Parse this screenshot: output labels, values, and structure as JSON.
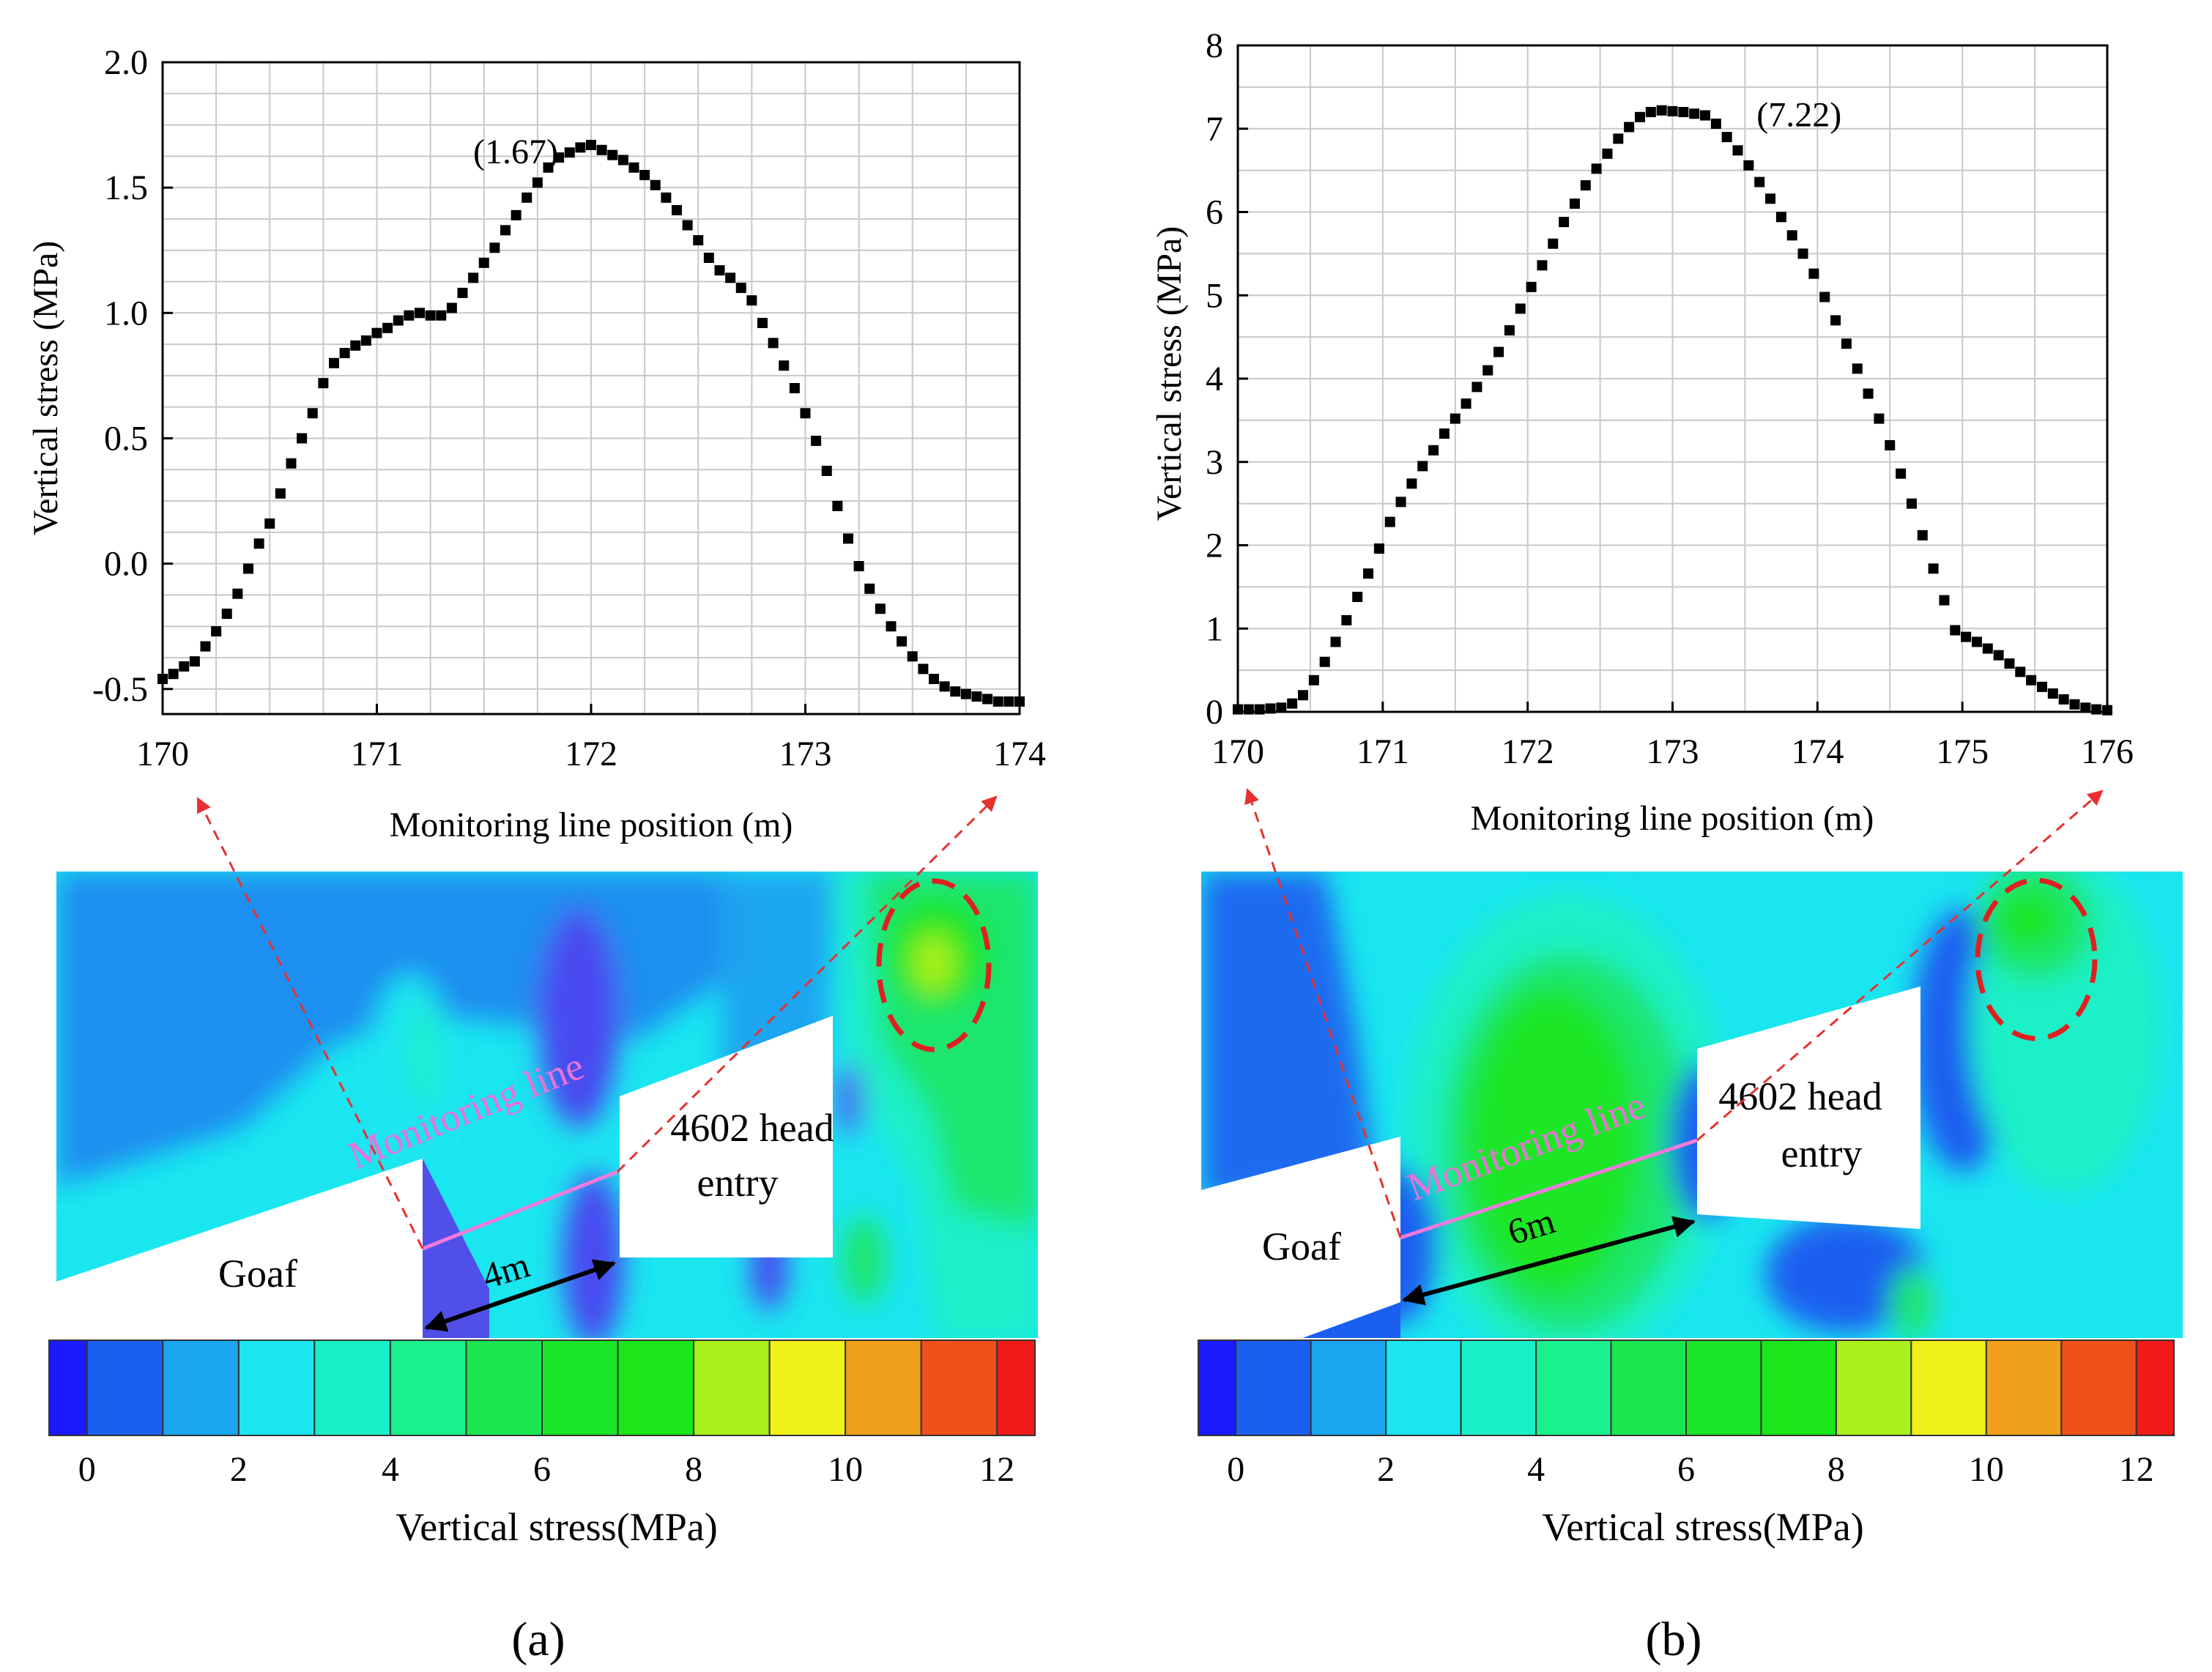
{
  "chart_data": [
    {
      "panel_label": "(a)",
      "type": "scatter",
      "xlabel": "Monitoring line position (m)",
      "ylabel": "Vertical stress (MPa)",
      "xlim": [
        170,
        174
      ],
      "ylim": [
        -0.6,
        2.0
      ],
      "xticks": [
        "170",
        "171",
        "172",
        "173",
        "174"
      ],
      "yticks": [
        "-0.5",
        "0.0",
        "0.5",
        "1.0",
        "1.5",
        "2.0"
      ],
      "grid": true,
      "marker": "square",
      "marker_color": "#000000",
      "peak": {
        "x": 172.0,
        "y": 1.67,
        "label": "(1.67)"
      },
      "x": [
        170.0,
        170.05,
        170.1,
        170.15,
        170.2,
        170.25,
        170.3,
        170.35,
        170.4,
        170.45,
        170.5,
        170.55,
        170.6,
        170.65,
        170.7,
        170.75,
        170.8,
        170.85,
        170.9,
        170.95,
        171.0,
        171.05,
        171.1,
        171.15,
        171.2,
        171.25,
        171.3,
        171.35,
        171.4,
        171.45,
        171.5,
        171.55,
        171.6,
        171.65,
        171.7,
        171.75,
        171.8,
        171.85,
        171.9,
        171.95,
        172.0,
        172.05,
        172.1,
        172.15,
        172.2,
        172.25,
        172.3,
        172.35,
        172.4,
        172.45,
        172.5,
        172.55,
        172.6,
        172.65,
        172.7,
        172.75,
        172.8,
        172.85,
        172.9,
        172.95,
        173.0,
        173.05,
        173.1,
        173.15,
        173.2,
        173.25,
        173.3,
        173.35,
        173.4,
        173.45,
        173.5,
        173.55,
        173.6,
        173.65,
        173.7,
        173.75,
        173.8,
        173.85,
        173.9,
        173.95,
        174.0
      ],
      "y": [
        -0.46,
        -0.44,
        -0.41,
        -0.39,
        -0.33,
        -0.27,
        -0.2,
        -0.12,
        -0.02,
        0.08,
        0.16,
        0.28,
        0.4,
        0.5,
        0.6,
        0.72,
        0.8,
        0.84,
        0.87,
        0.89,
        0.92,
        0.94,
        0.97,
        0.99,
        1.0,
        0.99,
        0.99,
        1.02,
        1.08,
        1.14,
        1.2,
        1.26,
        1.33,
        1.39,
        1.46,
        1.52,
        1.58,
        1.62,
        1.64,
        1.66,
        1.67,
        1.65,
        1.63,
        1.61,
        1.58,
        1.55,
        1.51,
        1.46,
        1.41,
        1.35,
        1.29,
        1.22,
        1.17,
        1.14,
        1.1,
        1.05,
        0.96,
        0.88,
        0.79,
        0.7,
        0.6,
        0.49,
        0.37,
        0.23,
        0.1,
        -0.01,
        -0.1,
        -0.18,
        -0.25,
        -0.31,
        -0.37,
        -0.42,
        -0.46,
        -0.49,
        -0.51,
        -0.52,
        -0.53,
        -0.54,
        -0.55,
        -0.55,
        -0.55
      ]
    },
    {
      "panel_label": "(b)",
      "type": "scatter",
      "xlabel": "Monitoring line position (m)",
      "ylabel": "Vertical stress (MPa)",
      "xlim": [
        170,
        176
      ],
      "ylim": [
        0,
        8
      ],
      "xticks": [
        "170",
        "171",
        "172",
        "173",
        "174",
        "175",
        "176"
      ],
      "yticks": [
        "0",
        "1",
        "2",
        "3",
        "4",
        "5",
        "6",
        "7",
        "8"
      ],
      "grid": true,
      "marker": "square",
      "marker_color": "#000000",
      "peak": {
        "x": 173.1,
        "y": 7.22,
        "label": "(7.22)"
      },
      "x": [
        170.0,
        170.075,
        170.15,
        170.225,
        170.3,
        170.375,
        170.45,
        170.525,
        170.6,
        170.675,
        170.75,
        170.825,
        170.9,
        170.975,
        171.05,
        171.125,
        171.2,
        171.275,
        171.35,
        171.425,
        171.5,
        171.575,
        171.65,
        171.725,
        171.8,
        171.875,
        171.95,
        172.025,
        172.1,
        172.175,
        172.25,
        172.325,
        172.4,
        172.475,
        172.55,
        172.625,
        172.7,
        172.775,
        172.85,
        172.925,
        173.0,
        173.075,
        173.15,
        173.225,
        173.3,
        173.375,
        173.45,
        173.525,
        173.6,
        173.675,
        173.75,
        173.825,
        173.9,
        173.975,
        174.05,
        174.125,
        174.2,
        174.275,
        174.35,
        174.425,
        174.5,
        174.575,
        174.65,
        174.725,
        174.8,
        174.875,
        174.95,
        175.025,
        175.1,
        175.175,
        175.25,
        175.325,
        175.4,
        175.475,
        175.55,
        175.625,
        175.7,
        175.775,
        175.85,
        175.925,
        176.0
      ],
      "y": [
        0.03,
        0.03,
        0.03,
        0.04,
        0.05,
        0.1,
        0.2,
        0.38,
        0.6,
        0.84,
        1.1,
        1.38,
        1.66,
        1.96,
        2.28,
        2.52,
        2.74,
        2.95,
        3.14,
        3.34,
        3.52,
        3.7,
        3.9,
        4.1,
        4.32,
        4.58,
        4.84,
        5.1,
        5.36,
        5.62,
        5.88,
        6.1,
        6.32,
        6.52,
        6.7,
        6.88,
        7.02,
        7.14,
        7.2,
        7.22,
        7.21,
        7.2,
        7.18,
        7.16,
        7.06,
        6.9,
        6.74,
        6.56,
        6.36,
        6.16,
        5.94,
        5.72,
        5.5,
        5.26,
        4.98,
        4.7,
        4.42,
        4.12,
        3.82,
        3.52,
        3.2,
        2.86,
        2.5,
        2.12,
        1.72,
        1.34,
        0.98,
        0.9,
        0.84,
        0.76,
        0.68,
        0.58,
        0.48,
        0.38,
        0.3,
        0.22,
        0.15,
        0.09,
        0.05,
        0.03,
        0.02
      ]
    }
  ],
  "contour_panels": [
    {
      "monitoring_label": "Monitoring line",
      "entry_label_line1": "4602 head",
      "entry_label_line2": "entry",
      "goaf_label": "Goaf",
      "distance_label": "4m"
    },
    {
      "monitoring_label": "Monitoring line",
      "entry_label_line1": "4602 head",
      "entry_label_line2": "entry",
      "goaf_label": "Goaf",
      "distance_label": "6m"
    }
  ],
  "colorbar": {
    "title": "Vertical stress(MPa)",
    "tick_labels": [
      "0",
      "2",
      "4",
      "6",
      "8",
      "10",
      "12"
    ],
    "colors": [
      "#1a1aff",
      "#1a5ff0",
      "#1aa5f0",
      "#1ae6f0",
      "#1af0c8",
      "#1af08c",
      "#1ae650",
      "#1ae628",
      "#1ae61a",
      "#aaf01a",
      "#f0f01a",
      "#f0a01a",
      "#f0501a",
      "#f01a1a"
    ]
  },
  "captions": [
    "(a)",
    "(b)"
  ],
  "colors": {
    "monitoring_line": "#f07adc",
    "dashed_arrow": "#e83030",
    "ellipse": "#e02020"
  }
}
